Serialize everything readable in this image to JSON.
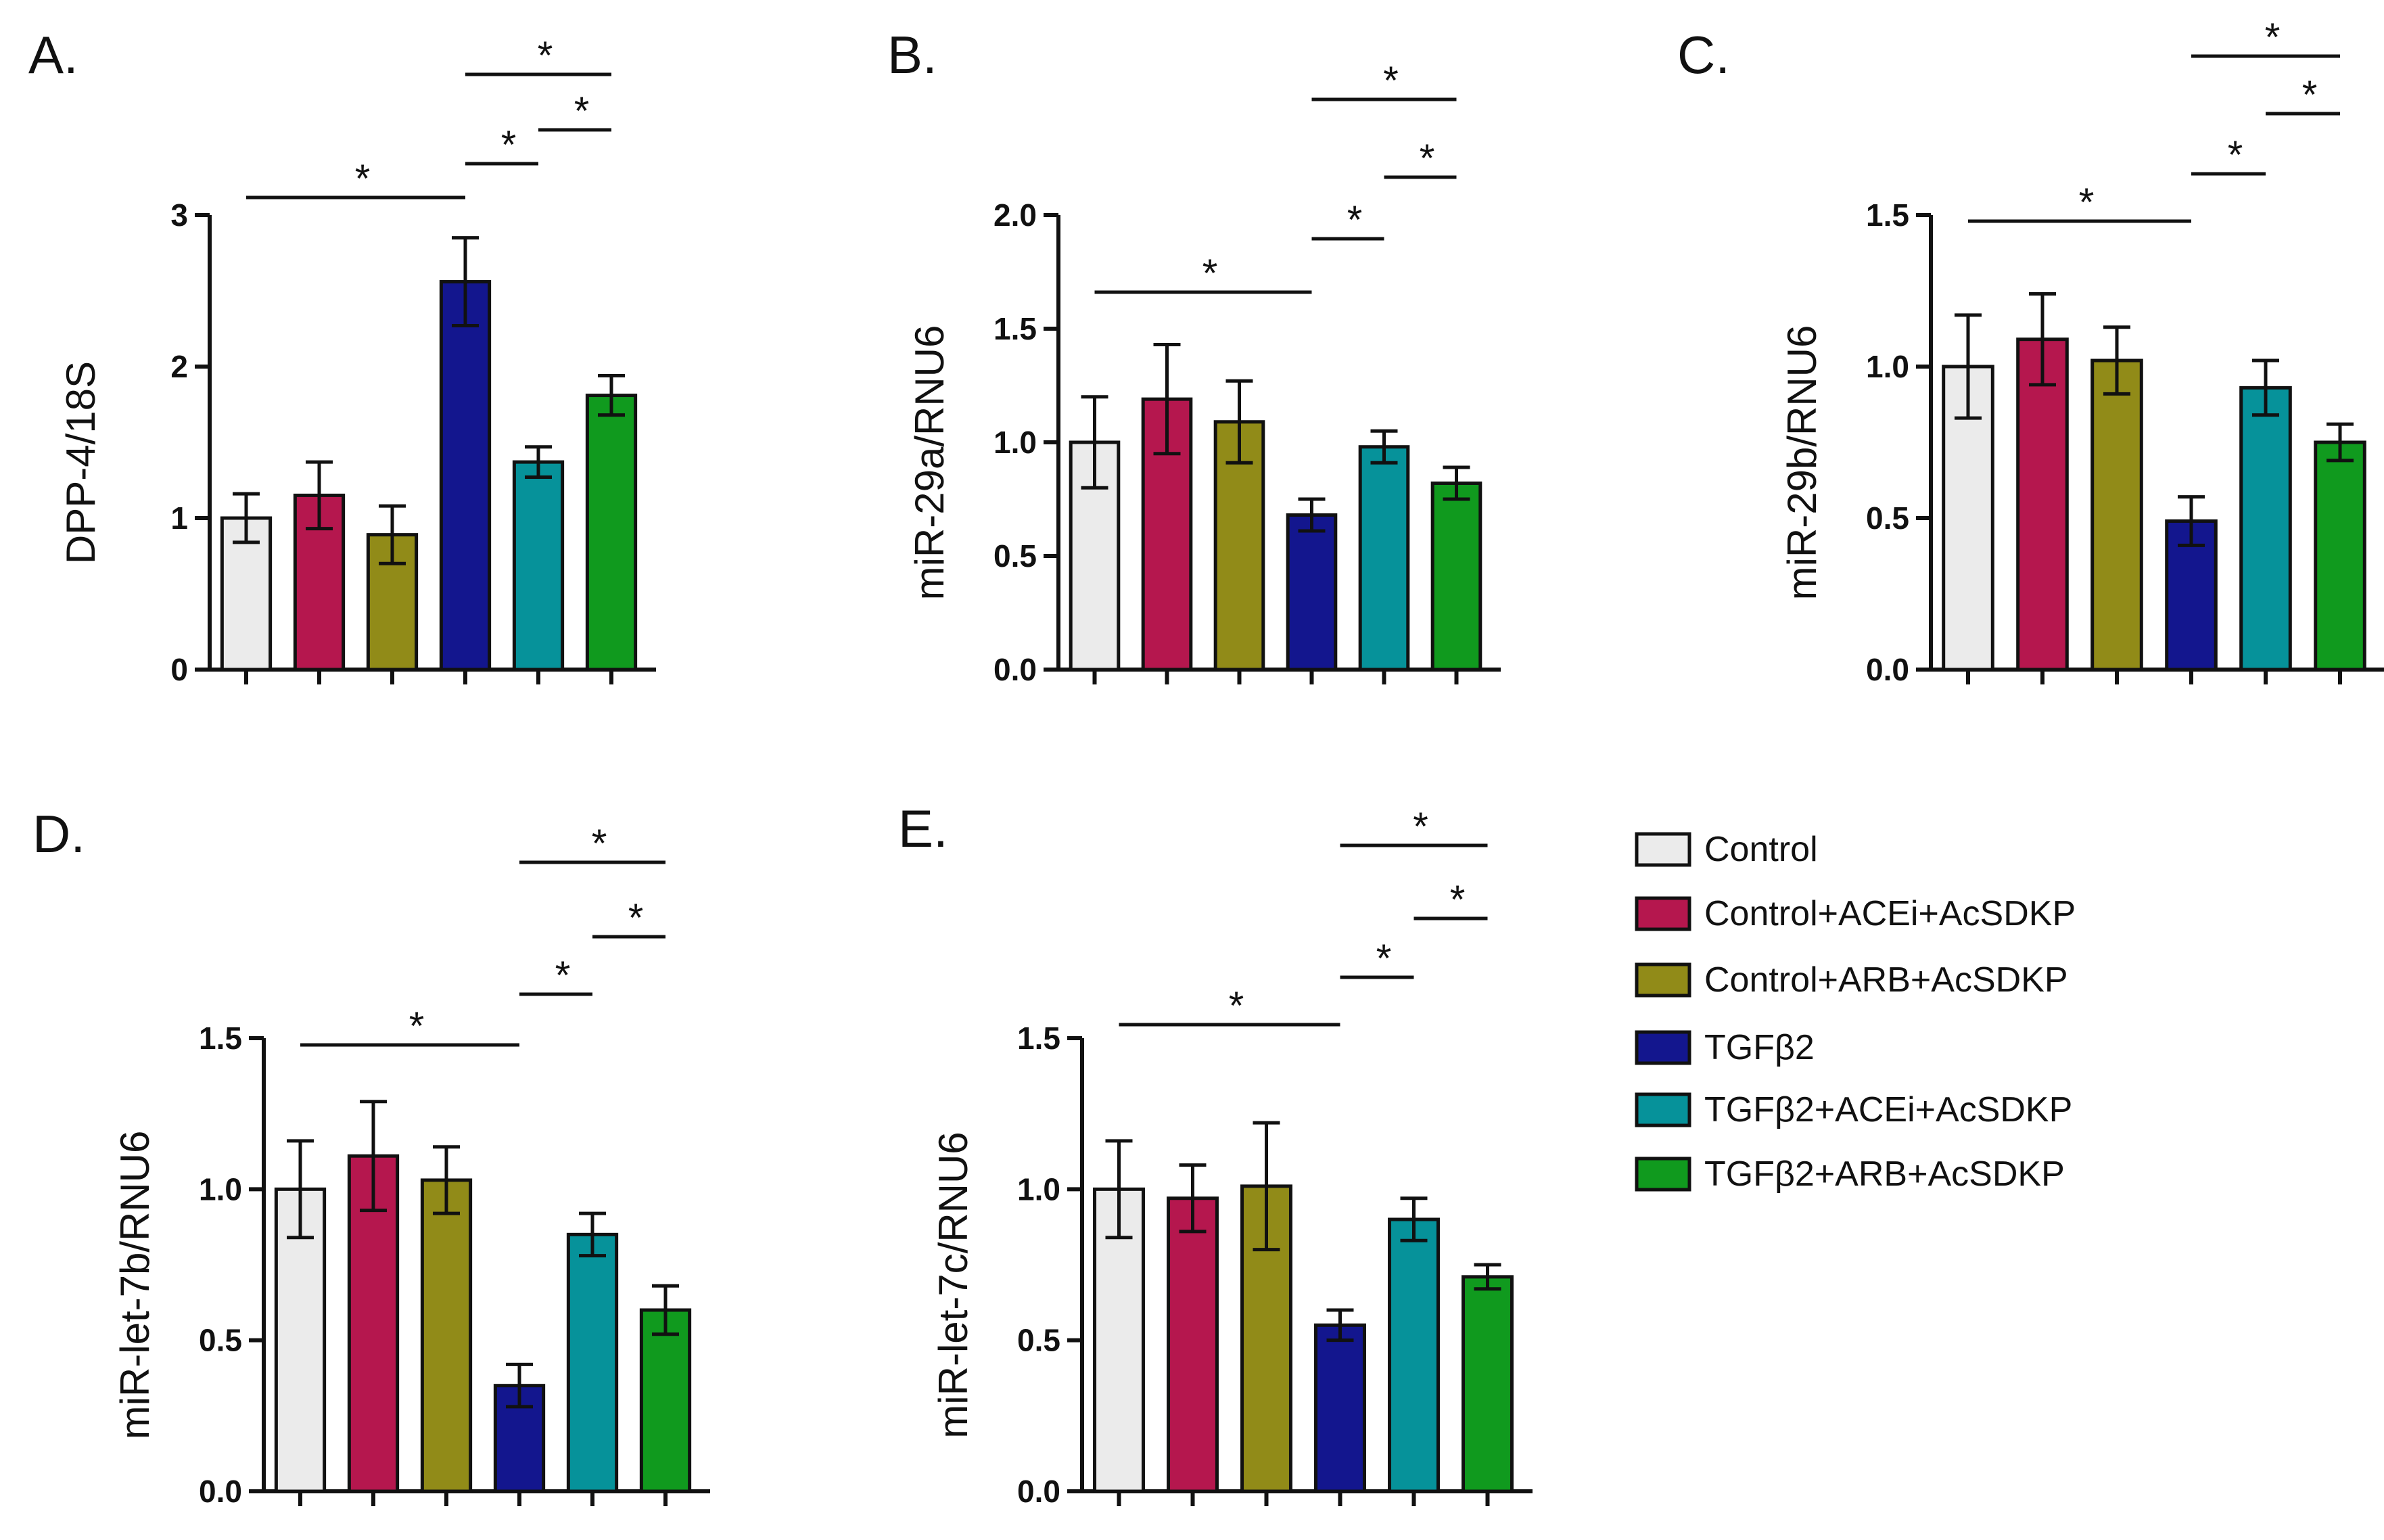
{
  "legend": [
    {
      "label": "Control",
      "color": "#ebebeb"
    },
    {
      "label": "Control+ACEi+AcSDKP",
      "color": "#b5174e"
    },
    {
      "label": "Control+ARB+AcSDKP",
      "color": "#918b18"
    },
    {
      "label": "TGFβ2",
      "color": "#13168e"
    },
    {
      "label": "TGFβ2+ACEi+AcSDKP",
      "color": "#06929a"
    },
    {
      "label": "TGFβ2+ARB+AcSDKP",
      "color": "#109a1e"
    }
  ],
  "chart_data": [
    {
      "type": "bar",
      "panel": "A.",
      "ylabel": "DPP-4/18S",
      "ylim": [
        0,
        3
      ],
      "yticks": [
        0,
        1,
        2,
        3
      ],
      "tick_labels": [
        "0",
        "1",
        "2",
        "3"
      ],
      "categories": [
        "Control",
        "Control+ACEi+AcSDKP",
        "Control+ARB+AcSDKP",
        "TGFβ2",
        "TGFβ2+ACEi+AcSDKP",
        "TGFβ2+ARB+AcSDKP"
      ],
      "values": [
        1.0,
        1.15,
        0.89,
        2.56,
        1.37,
        1.81
      ],
      "errors": [
        0.16,
        0.22,
        0.19,
        0.29,
        0.1,
        0.13
      ],
      "significance": [
        {
          "from": 0,
          "to": 3,
          "label": "*",
          "level": 0
        },
        {
          "from": 3,
          "to": 4,
          "label": "*",
          "level": 1
        },
        {
          "from": 4,
          "to": 5,
          "label": "*",
          "level": 2
        },
        {
          "from": 3,
          "to": 5,
          "label": "*",
          "level": 3
        }
      ]
    },
    {
      "type": "bar",
      "panel": "B.",
      "ylabel": "miR-29a/RNU6",
      "ylim": [
        0,
        2.0
      ],
      "yticks": [
        0,
        0.5,
        1.0,
        1.5,
        2.0
      ],
      "tick_labels": [
        "0.0",
        "0.5",
        "1.0",
        "1.5",
        "2.0"
      ],
      "categories": [
        "Control",
        "Control+ACEi+AcSDKP",
        "Control+ARB+AcSDKP",
        "TGFβ2",
        "TGFβ2+ACEi+AcSDKP",
        "TGFβ2+ARB+AcSDKP"
      ],
      "values": [
        1.0,
        1.19,
        1.09,
        0.68,
        0.98,
        0.82
      ],
      "errors": [
        0.2,
        0.24,
        0.18,
        0.07,
        0.07,
        0.07
      ],
      "significance": [
        {
          "from": 0,
          "to": 3,
          "label": "*",
          "level": 0
        },
        {
          "from": 3,
          "to": 4,
          "label": "*",
          "level": 1
        },
        {
          "from": 4,
          "to": 5,
          "label": "*",
          "level": 2
        },
        {
          "from": 3,
          "to": 5,
          "label": "*",
          "level": 3
        }
      ]
    },
    {
      "type": "bar",
      "panel": "C.",
      "ylabel": "miR-29b/RNU6",
      "ylim": [
        0,
        1.5
      ],
      "yticks": [
        0,
        0.5,
        1.0,
        1.5
      ],
      "tick_labels": [
        "0.0",
        "0.5",
        "1.0",
        "1.5"
      ],
      "categories": [
        "Control",
        "Control+ACEi+AcSDKP",
        "Control+ARB+AcSDKP",
        "TGFβ2",
        "TGFβ2+ACEi+AcSDKP",
        "TGFβ2+ARB+AcSDKP"
      ],
      "values": [
        1.0,
        1.09,
        1.02,
        0.49,
        0.93,
        0.75
      ],
      "errors": [
        0.17,
        0.15,
        0.11,
        0.08,
        0.09,
        0.06
      ],
      "significance": [
        {
          "from": 0,
          "to": 3,
          "label": "*",
          "level": 0
        },
        {
          "from": 3,
          "to": 4,
          "label": "*",
          "level": 1
        },
        {
          "from": 4,
          "to": 5,
          "label": "*",
          "level": 2
        },
        {
          "from": 3,
          "to": 5,
          "label": "*",
          "level": 3
        }
      ]
    },
    {
      "type": "bar",
      "panel": "D.",
      "ylabel": "miR-let-7b/RNU6",
      "ylim": [
        0,
        1.5
      ],
      "yticks": [
        0,
        0.5,
        1.0,
        1.5
      ],
      "tick_labels": [
        "0.0",
        "0.5",
        "1.0",
        "1.5"
      ],
      "categories": [
        "Control",
        "Control+ACEi+AcSDKP",
        "Control+ARB+AcSDKP",
        "TGFβ2",
        "TGFβ2+ACEi+AcSDKP",
        "TGFβ2+ARB+AcSDKP"
      ],
      "values": [
        1.0,
        1.11,
        1.03,
        0.35,
        0.85,
        0.6
      ],
      "errors": [
        0.16,
        0.18,
        0.11,
        0.07,
        0.07,
        0.08
      ],
      "significance": [
        {
          "from": 0,
          "to": 3,
          "label": "*",
          "level": 0
        },
        {
          "from": 3,
          "to": 4,
          "label": "*",
          "level": 1
        },
        {
          "from": 4,
          "to": 5,
          "label": "*",
          "level": 2
        },
        {
          "from": 3,
          "to": 5,
          "label": "*",
          "level": 3
        }
      ]
    },
    {
      "type": "bar",
      "panel": "E.",
      "ylabel": "miR-let-7c/RNU6",
      "ylim": [
        0,
        1.5
      ],
      "yticks": [
        0,
        0.5,
        1.0,
        1.5
      ],
      "tick_labels": [
        "0.0",
        "0.5",
        "1.0",
        "1.5"
      ],
      "categories": [
        "Control",
        "Control+ACEi+AcSDKP",
        "Control+ARB+AcSDKP",
        "TGFβ2",
        "TGFβ2+ACEi+AcSDKP",
        "TGFβ2+ARB+AcSDKP"
      ],
      "values": [
        1.0,
        0.97,
        1.01,
        0.55,
        0.9,
        0.71
      ],
      "errors": [
        0.16,
        0.11,
        0.21,
        0.05,
        0.07,
        0.04
      ],
      "significance": [
        {
          "from": 0,
          "to": 3,
          "label": "*",
          "level": 0
        },
        {
          "from": 3,
          "to": 4,
          "label": "*",
          "level": 1
        },
        {
          "from": 4,
          "to": 5,
          "label": "*",
          "level": 2
        },
        {
          "from": 3,
          "to": 5,
          "label": "*",
          "level": 3
        }
      ]
    }
  ]
}
